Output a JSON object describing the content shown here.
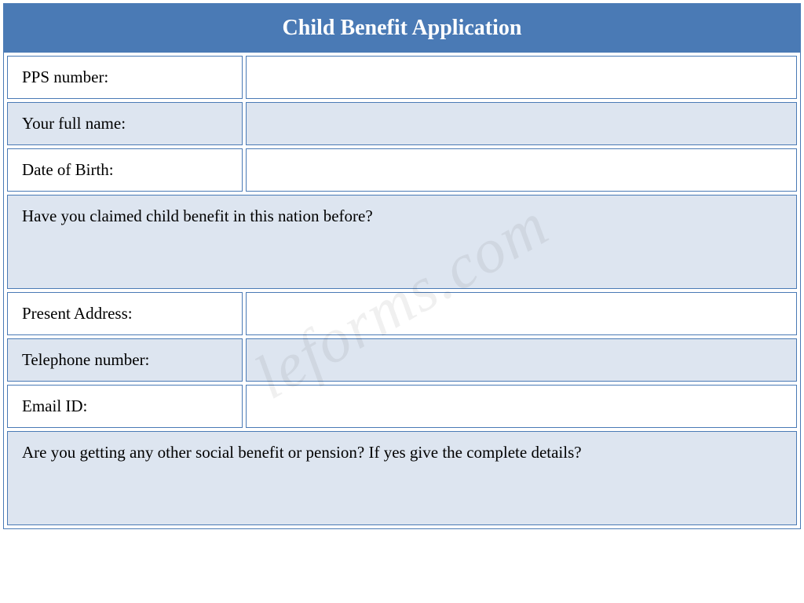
{
  "form": {
    "title": "Child Benefit Application",
    "header_bg_color": "#4a7ab5",
    "header_text_color": "#ffffff",
    "border_color": "#4a7ab5",
    "alt_row_bg_color": "#dde5f0",
    "white_row_bg_color": "#ffffff",
    "label_font_size": 21,
    "title_font_size": 28,
    "rows": [
      {
        "label": "PPS number:",
        "value": "",
        "style": "white",
        "type": "field"
      },
      {
        "label": "Your full name:",
        "value": "",
        "style": "alt",
        "type": "field"
      },
      {
        "label": "Date of Birth:",
        "value": "",
        "style": "white",
        "type": "field"
      },
      {
        "label": "Have you claimed child benefit in this nation before?",
        "value": "",
        "style": "full",
        "type": "question",
        "tall": true
      },
      {
        "label": "Present Address:",
        "value": "",
        "style": "white",
        "type": "field"
      },
      {
        "label": "Telephone number:",
        "value": "",
        "style": "alt",
        "type": "field"
      },
      {
        "label": "Email ID:",
        "value": "",
        "style": "white",
        "type": "field"
      },
      {
        "label": "Are you getting any other social benefit or pension? If yes give the complete details?",
        "value": "",
        "style": "full",
        "type": "question",
        "tall": true
      }
    ]
  },
  "watermark": {
    "text": "leforms.com",
    "color": "rgba(0,0,0,0.06)",
    "font_size": 80
  }
}
